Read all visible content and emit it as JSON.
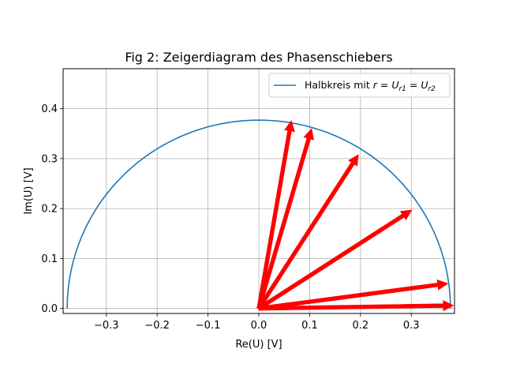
{
  "chart_data": {
    "type": "line",
    "title": "Fig 2: Zeigerdiagram des Phasenschiebers",
    "xlabel": "Re(U) [V]",
    "ylabel": "Im(U) [V]",
    "xlim": [
      -0.385,
      0.385
    ],
    "ylim": [
      -0.01,
      0.48
    ],
    "xticks": [
      -0.3,
      -0.2,
      -0.1,
      0.0,
      0.1,
      0.2,
      0.3
    ],
    "xtick_labels": [
      "−0.3",
      "−0.2",
      "−0.1",
      "0.0",
      "0.1",
      "0.2",
      "0.3"
    ],
    "yticks": [
      0.0,
      0.1,
      0.2,
      0.3,
      0.4
    ],
    "ytick_labels": [
      "0.0",
      "0.1",
      "0.2",
      "0.3",
      "0.4"
    ],
    "grid": true,
    "legend_position": "top-right",
    "series": [
      {
        "name": "Halbkreis mit r = U_r1 = U_r2",
        "kind": "semicircle",
        "radius": 0.377,
        "color": "#1f77b4"
      }
    ],
    "vectors": {
      "color": "#ff0000",
      "origin": [
        0.0,
        0.0
      ],
      "tips": [
        [
          0.064,
          0.376
        ],
        [
          0.104,
          0.36
        ],
        [
          0.196,
          0.308
        ],
        [
          0.301,
          0.197
        ],
        [
          0.372,
          0.05
        ],
        [
          0.383,
          0.006
        ]
      ]
    }
  },
  "legend": {
    "prefix": "Halbkreis mit ",
    "r": "r",
    "eq1": " = ",
    "U1": "U",
    "sub1": "r1",
    "eq2": " = ",
    "U2": "U",
    "sub2": "r2"
  }
}
